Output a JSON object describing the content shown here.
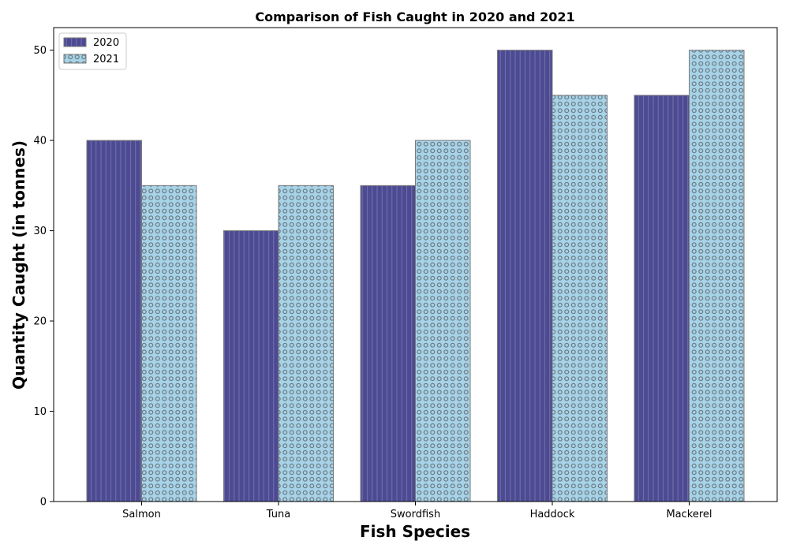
{
  "chart_data": {
    "type": "bar",
    "title": "Comparison of Fish Caught in 2020 and 2021",
    "xlabel": "Fish Species",
    "ylabel": "Quantity Caught (in tonnes)",
    "categories": [
      "Salmon",
      "Tuna",
      "Swordfish",
      "Haddock",
      "Mackerel"
    ],
    "series": [
      {
        "name": "2020",
        "values": [
          40,
          30,
          35,
          50,
          45
        ],
        "color": "#4b4b94",
        "pattern": "vertical-lines"
      },
      {
        "name": "2021",
        "values": [
          35,
          35,
          40,
          45,
          50
        ],
        "color": "#a7d3e8",
        "pattern": "circles"
      }
    ],
    "ylim": [
      0,
      52.5
    ],
    "yticks": [
      0,
      10,
      20,
      30,
      40,
      50
    ],
    "legend": "top-left",
    "grid": false,
    "bar_edge_color": "#7a7a7a"
  }
}
